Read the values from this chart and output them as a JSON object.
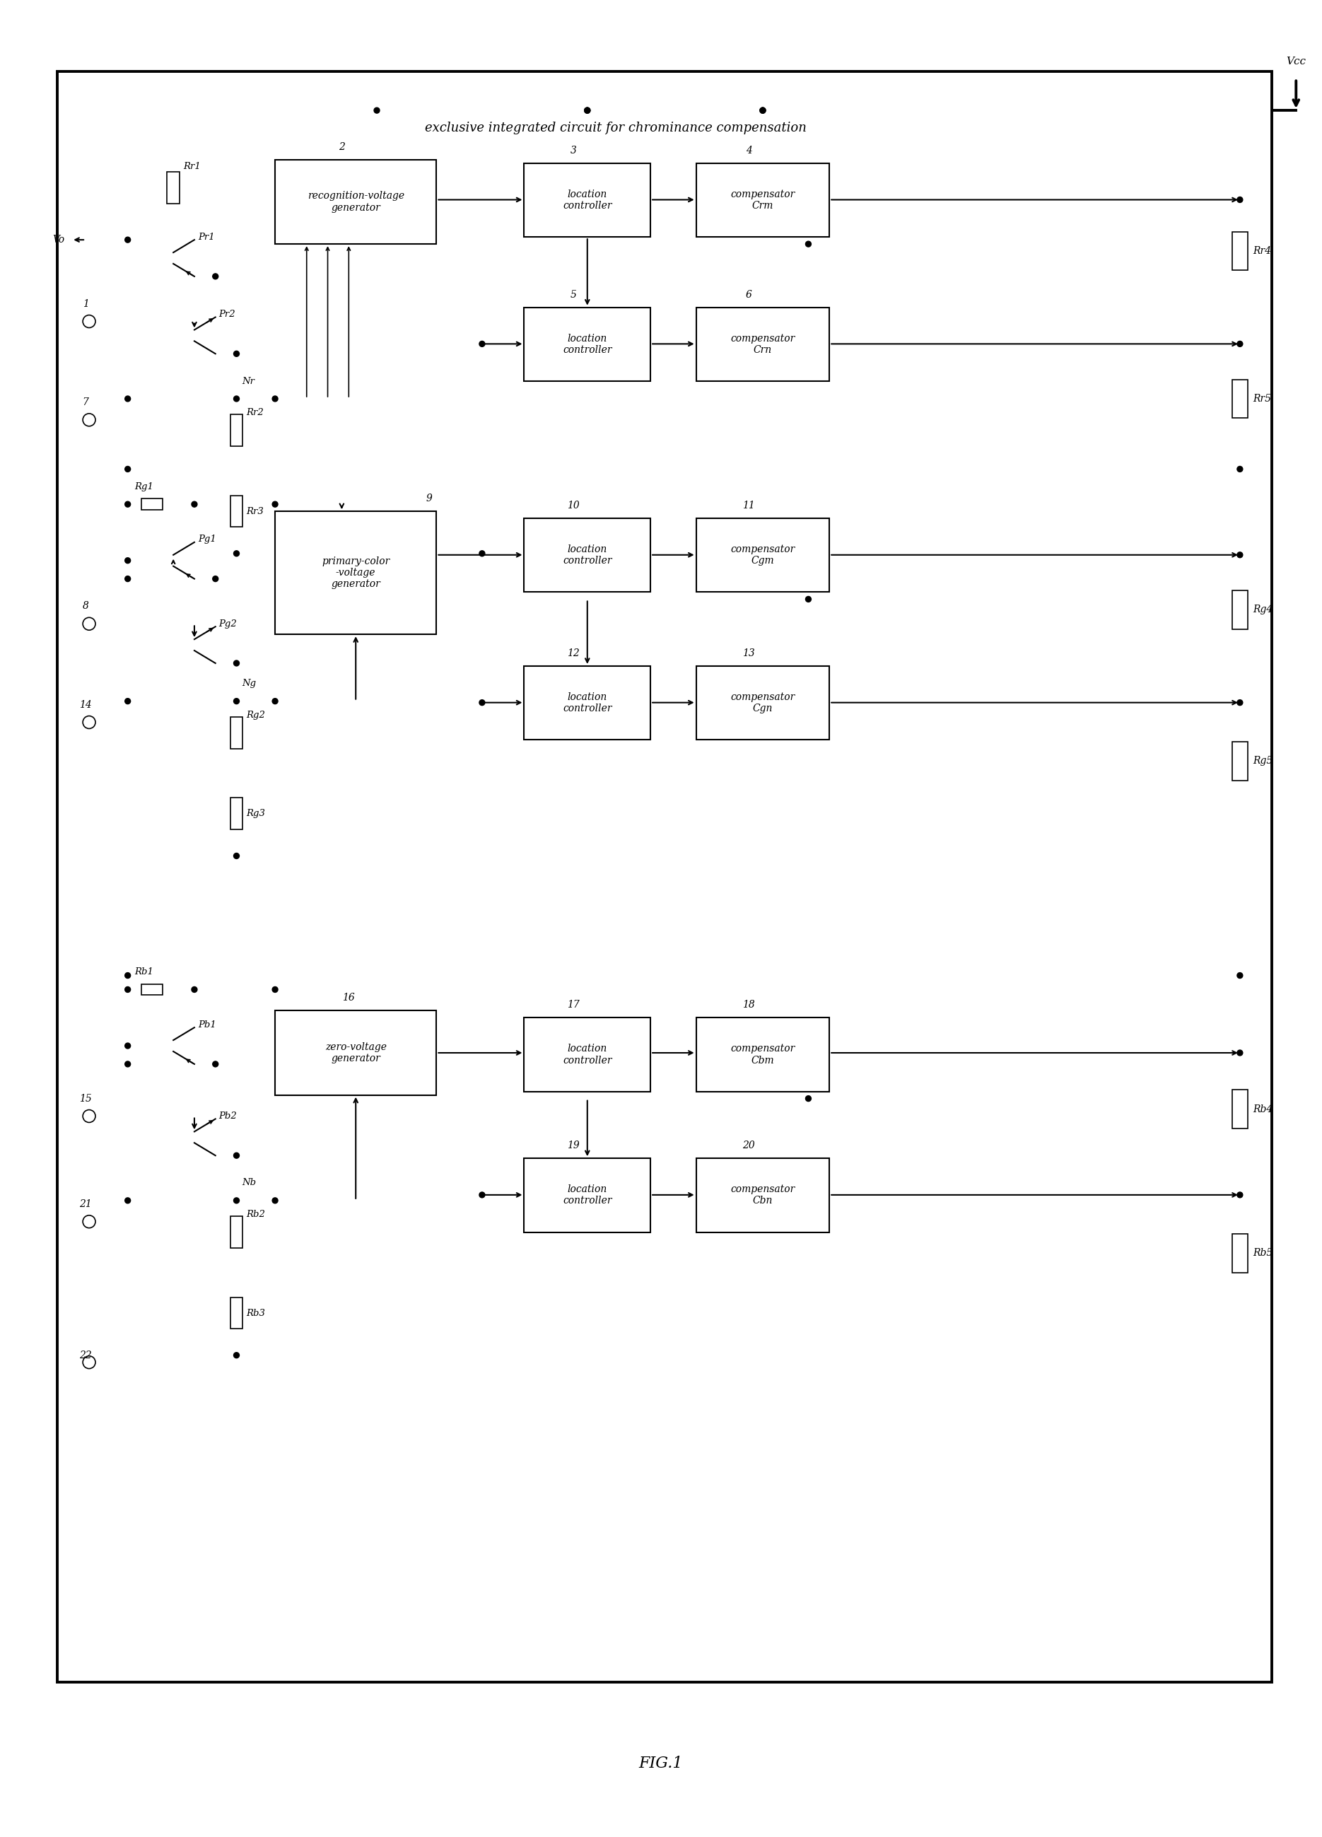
{
  "title": "FIG.1",
  "ic_label": "exclusive integrated circuit for chrominance compensation",
  "vcc_label": "Vcc",
  "bg_color": "#ffffff",
  "fig_width": 18.7,
  "fig_height": 25.98
}
